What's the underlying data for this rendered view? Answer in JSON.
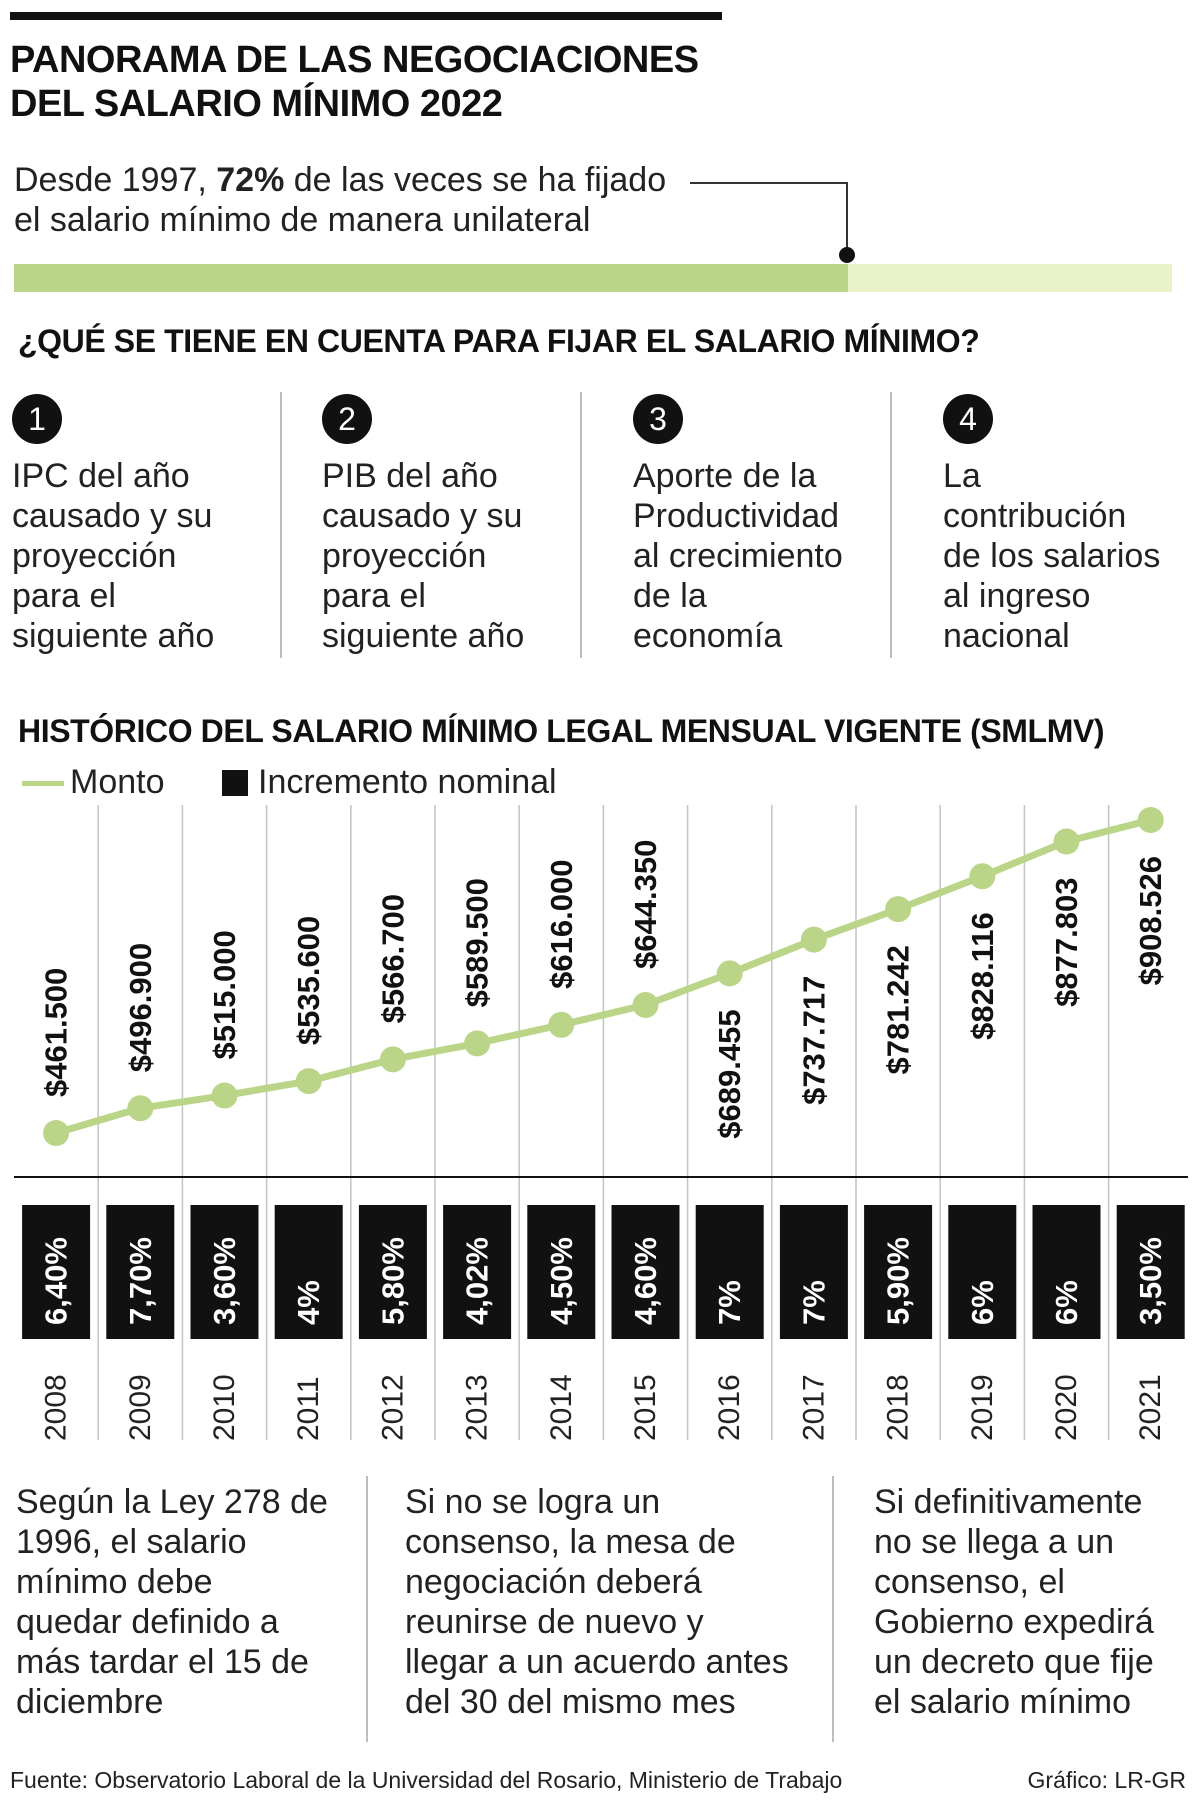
{
  "header": {
    "title_line1": "PANORAMA DE LAS NEGOCIACIONES",
    "title_line2": "DEL SALARIO MÍNIMO 2022"
  },
  "intro": {
    "text_before": "Desde 1997, ",
    "highlight": "72%",
    "text_after": " de las veces se ha fijado",
    "line2": "el salario mínimo de manera unilateral",
    "share": 0.72,
    "bar_color": "#bad588",
    "track_color": "#e9f1c9"
  },
  "factors": {
    "heading": "¿QUÉ SE TIENE EN CUENTA PARA FIJAR EL SALARIO MÍNIMO?",
    "items": [
      {
        "number": "1",
        "lines": [
          "IPC del año",
          "causado y su",
          "proyección",
          "para el",
          "siguiente año"
        ]
      },
      {
        "number": "2",
        "lines": [
          "PIB del año",
          "causado y su",
          "proyección",
          "para el",
          "siguiente año"
        ]
      },
      {
        "number": "3",
        "lines": [
          "Aporte de la",
          "Productividad",
          "al crecimiento",
          "de la",
          "economía"
        ]
      },
      {
        "number": "4",
        "lines": [
          "La",
          "contribución",
          "de los salarios",
          "al ingreso",
          "nacional"
        ]
      }
    ]
  },
  "history": {
    "heading": "HISTÓRICO DEL SALARIO MÍNIMO LEGAL MENSUAL VIGENTE (SMLMV)"
  },
  "chart_data": {
    "type": "line",
    "x": [
      "2008",
      "2009",
      "2010",
      "2011",
      "2012",
      "2013",
      "2014",
      "2015",
      "2016",
      "2017",
      "2018",
      "2019",
      "2020",
      "2021"
    ],
    "series": [
      {
        "name": "Monto",
        "values": [
          461500,
          496900,
          515000,
          535600,
          566700,
          589500,
          616000,
          644350,
          689455,
          737717,
          781242,
          828116,
          877803,
          908526
        ],
        "labels": [
          "$461.500",
          "$496.900",
          "$515.000",
          "$535.600",
          "$566.700",
          "$589.500",
          "$616.000",
          "$644.350",
          "$689.455",
          "$737.717",
          "$781.242",
          "$828.116",
          "$877.803",
          "$908.526"
        ],
        "color": "#bad588"
      },
      {
        "name": "Incremento nominal",
        "labels": [
          "6,40%",
          "7,70%",
          "3,60%",
          "4%",
          "5,80%",
          "4,02%",
          "4,50%",
          "4,60%",
          "7%",
          "7%",
          "5,90%",
          "6%",
          "6%",
          "3,50%"
        ],
        "color": "#111111"
      }
    ],
    "legend": "top-left",
    "grid": true
  },
  "notes": [
    {
      "lines": [
        "Según la Ley 278 de",
        "1996, el salario",
        "mínimo debe",
        "quedar definido a",
        "más tardar el 15 de",
        "diciembre"
      ]
    },
    {
      "lines": [
        "Si no se logra un",
        "consenso, la mesa de",
        "negociación deberá",
        "reunirse de nuevo y",
        "llegar a un acuerdo antes",
        "del 30 del mismo mes"
      ]
    },
    {
      "lines": [
        "Si definitivamente",
        "no se llega a un",
        "consenso, el",
        "Gobierno expedirá",
        "un decreto que fije",
        "el salario mínimo"
      ]
    }
  ],
  "footer": {
    "source": "Fuente: Observatorio Laboral de la Universidad del Rosario, Ministerio de Trabajo",
    "credit": "Gráfico: LR-GR"
  }
}
